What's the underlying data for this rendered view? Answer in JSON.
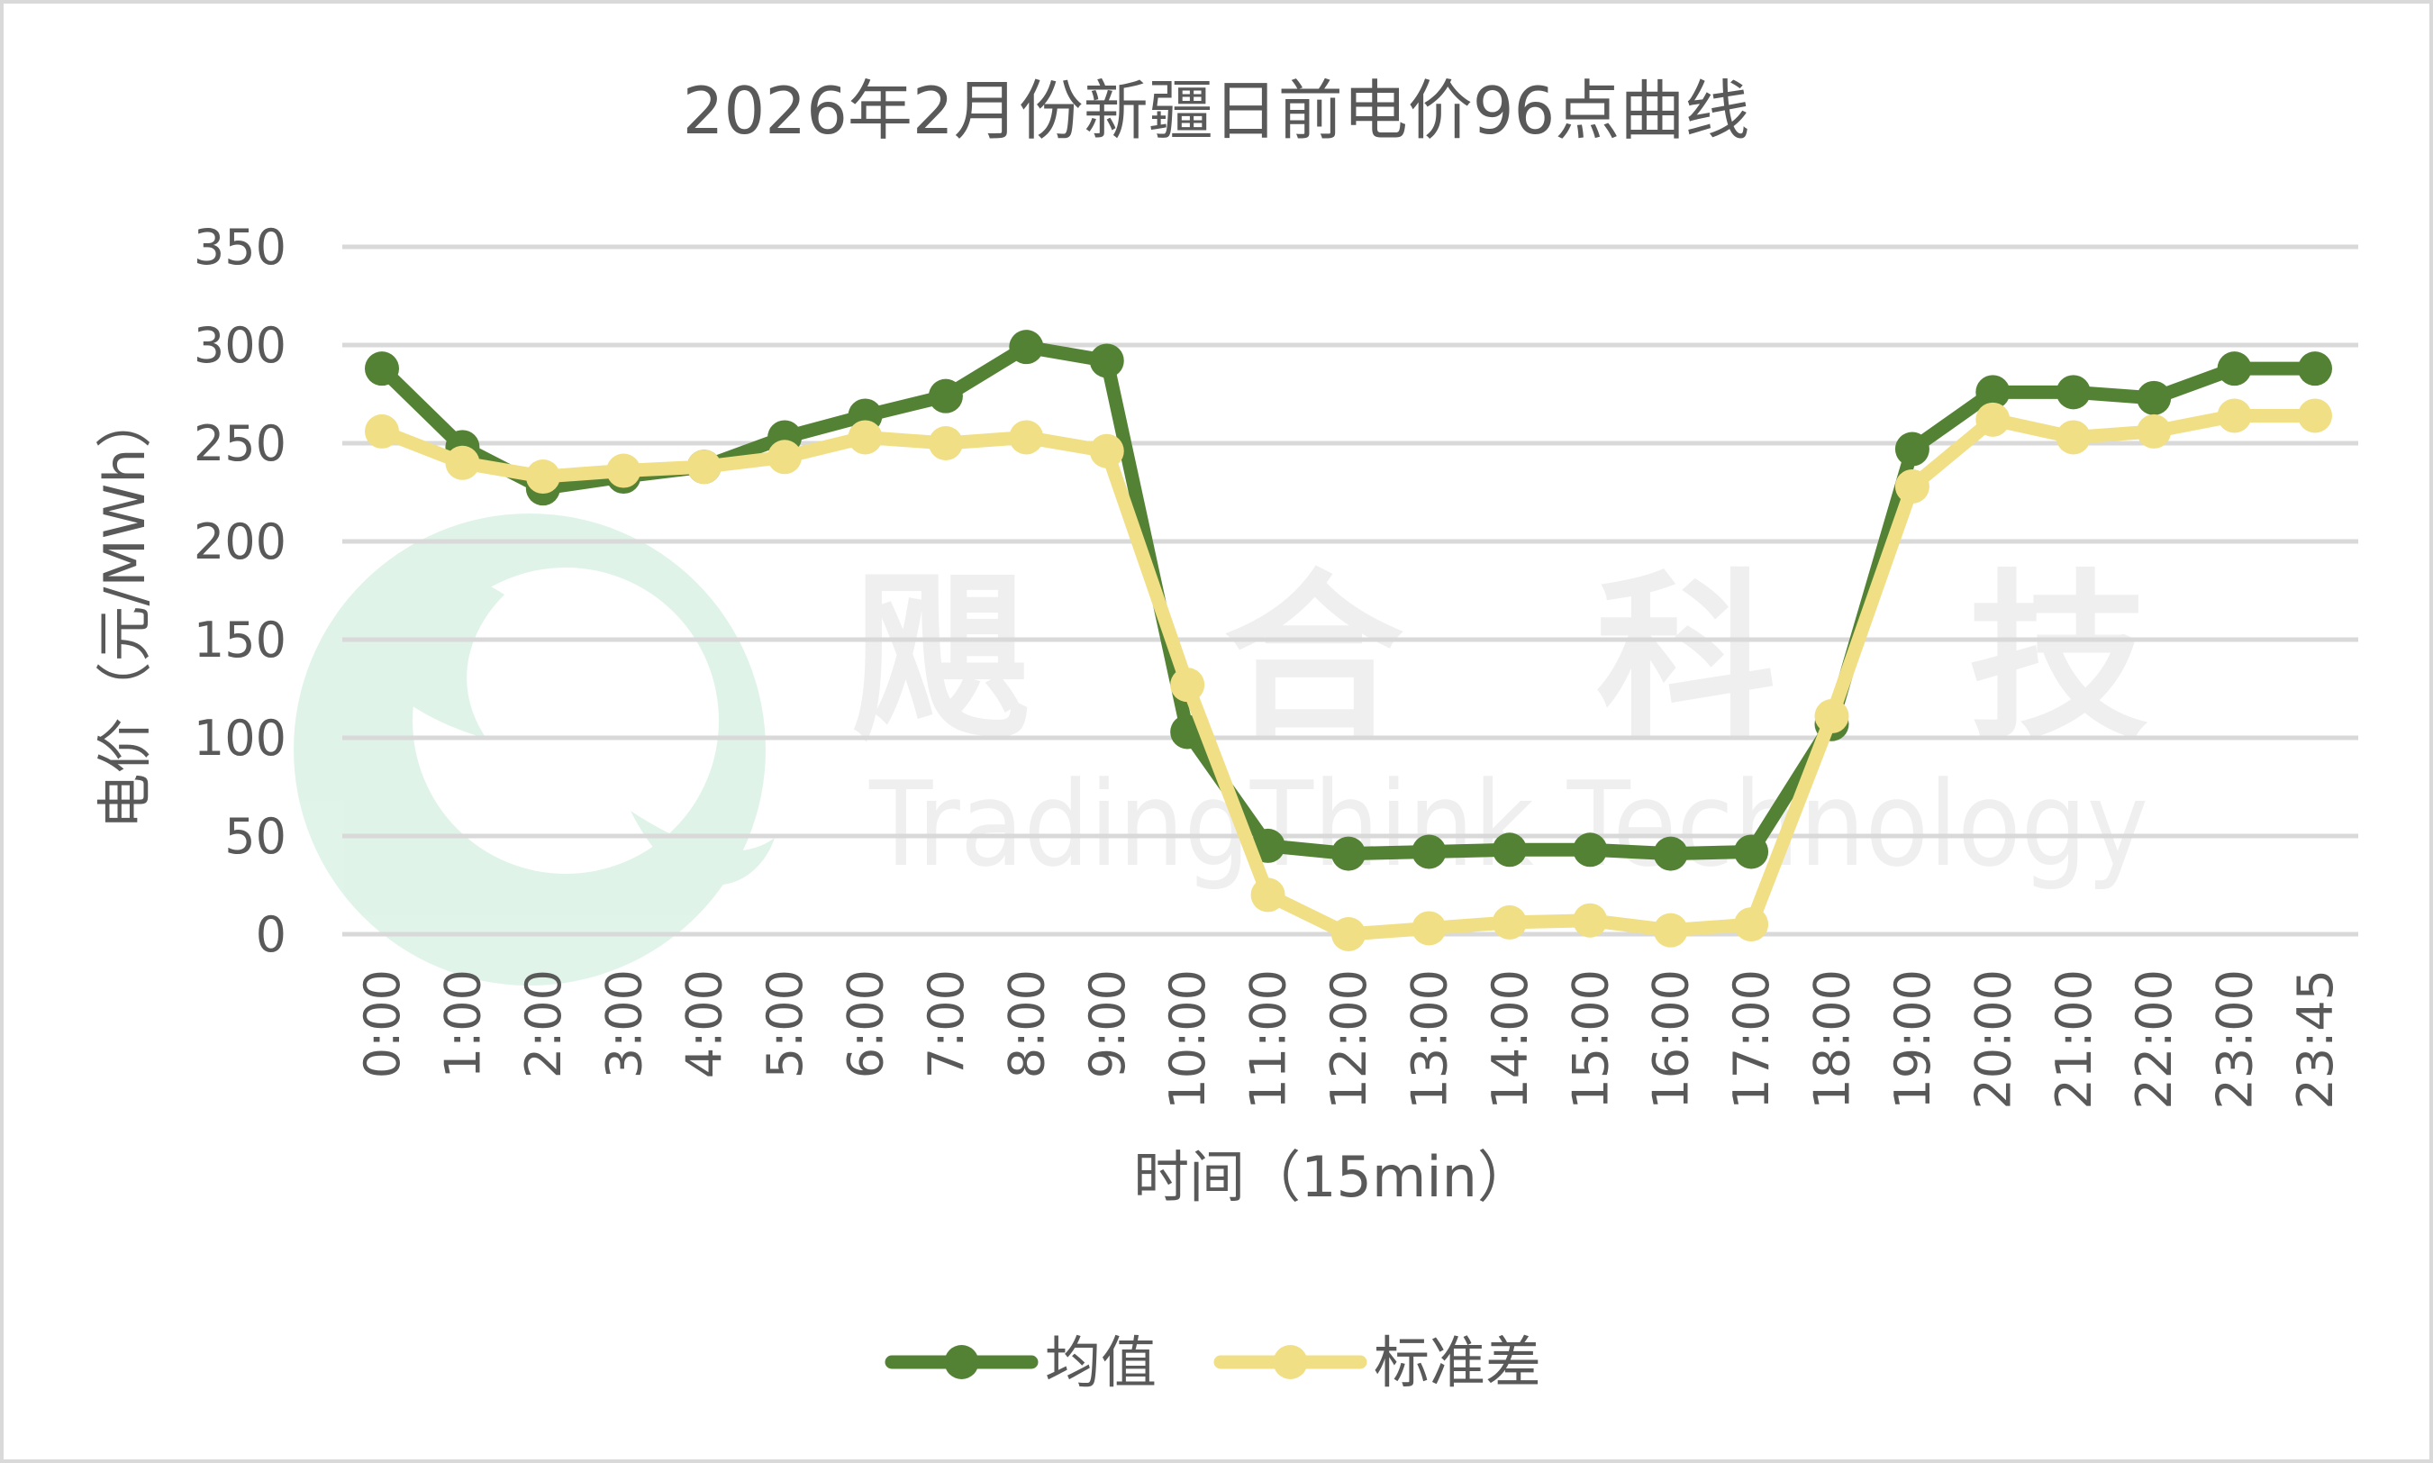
{
  "watermark": {
    "cn": "飓 合 科 技",
    "en": "TradingThink Technology"
  },
  "chart_data": {
    "type": "line",
    "title": "2026年2月份新疆日前电价96点曲线",
    "xlabel": "时间（15min）",
    "ylabel": "电价（元/MWh）",
    "ylim": [
      0,
      350
    ],
    "yticks": [
      0,
      50,
      100,
      150,
      200,
      250,
      300,
      350
    ],
    "grid": true,
    "legend_position": "bottom",
    "categories": [
      "0:00",
      "1:00",
      "2:00",
      "3:00",
      "4:00",
      "5:00",
      "6:00",
      "7:00",
      "8:00",
      "9:00",
      "10:00",
      "11:00",
      "12:00",
      "13:00",
      "14:00",
      "15:00",
      "16:00",
      "17:00",
      "18:00",
      "19:00",
      "20:00",
      "21:00",
      "22:00",
      "23:00",
      "23:45"
    ],
    "series": [
      {
        "name": "均值",
        "color": "#548235",
        "values": [
          288,
          248,
          227,
          233,
          238,
          253,
          264,
          274,
          299,
          292,
          103,
          45,
          41,
          42,
          43,
          43,
          41,
          42,
          107,
          247,
          276,
          276,
          273,
          288,
          288
        ]
      },
      {
        "name": "标准差",
        "color": "#f0df85",
        "values": [
          256,
          240,
          233,
          236,
          238,
          243,
          253,
          250,
          253,
          246,
          127,
          20,
          0,
          3,
          6,
          7,
          2,
          5,
          111,
          228,
          262,
          253,
          256,
          264,
          264
        ]
      }
    ]
  }
}
